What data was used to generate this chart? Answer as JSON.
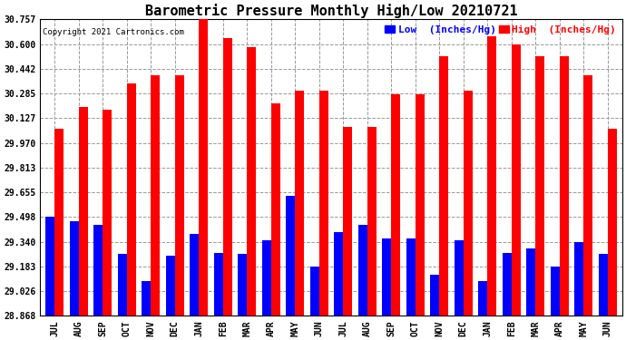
{
  "title": "Barometric Pressure Monthly High/Low 20210721",
  "copyright": "Copyright 2021 Cartronics.com",
  "legend_low": "Low  (Inches/Hg)",
  "legend_high": "High  (Inches/Hg)",
  "categories": [
    "JUL",
    "AUG",
    "SEP",
    "OCT",
    "NOV",
    "DEC",
    "JAN",
    "FEB",
    "MAR",
    "APR",
    "MAY",
    "JUN",
    "JUL",
    "AUG",
    "SEP",
    "OCT",
    "NOV",
    "DEC",
    "JAN",
    "FEB",
    "MAR",
    "APR",
    "MAY",
    "JUN"
  ],
  "high_values": [
    30.06,
    30.2,
    30.18,
    30.35,
    30.4,
    30.4,
    30.76,
    30.64,
    30.58,
    30.22,
    30.3,
    30.3,
    30.07,
    30.07,
    30.28,
    30.28,
    30.52,
    30.3,
    30.65,
    30.6,
    30.52,
    30.52,
    30.4,
    30.06
  ],
  "low_values": [
    29.5,
    29.47,
    29.45,
    29.26,
    29.09,
    29.25,
    29.39,
    29.27,
    29.26,
    29.35,
    29.63,
    29.18,
    29.4,
    29.45,
    29.36,
    29.36,
    29.13,
    29.35,
    29.09,
    29.27,
    29.3,
    29.18,
    29.34,
    29.26
  ],
  "bar_width": 0.38,
  "ylim_min": 28.868,
  "ylim_max": 30.757,
  "yticks": [
    28.868,
    29.026,
    29.183,
    29.34,
    29.498,
    29.655,
    29.813,
    29.97,
    30.127,
    30.285,
    30.442,
    30.6,
    30.757
  ],
  "high_color": "#ff0000",
  "low_color": "#0000ff",
  "background_color": "#ffffff",
  "plot_bg_color": "#ffffff",
  "grid_color": "#999999",
  "title_fontsize": 11,
  "copyright_fontsize": 6.5,
  "legend_fontsize": 8,
  "tick_fontsize": 7,
  "base": 28.868
}
